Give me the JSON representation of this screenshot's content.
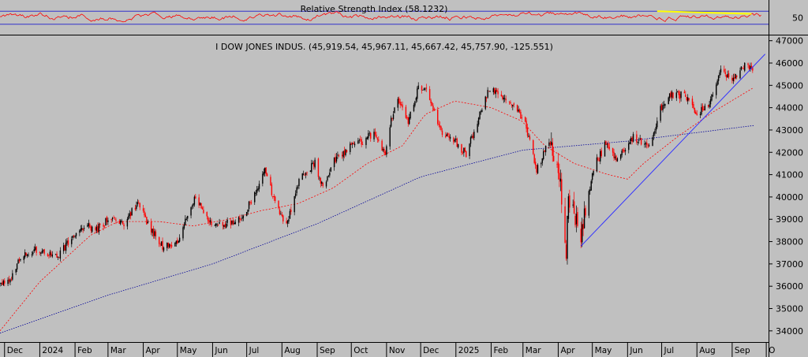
{
  "chart_data": [
    {
      "type": "line",
      "title": "Relative Strength Index (58.1232)",
      "ylim": [
        0,
        100
      ],
      "bands": [
        30,
        70
      ],
      "yticks": [
        50
      ],
      "trendline": {
        "x": [
          "2025-06-27",
          "2025-09-18"
        ],
        "y": [
          70,
          62
        ]
      },
      "colors": {
        "series": "#ff0000",
        "bands": "#3333cc",
        "trendline": "#ffff00",
        "text": "#000000"
      }
    },
    {
      "type": "candlestick",
      "title": "I DOW JONES INDUS. (45,919.54, 45,967.11, 45,667.42, 45,757.90, -125.551)",
      "ylim": [
        33500,
        47200
      ],
      "yticks": [
        34000,
        35000,
        36000,
        37000,
        38000,
        39000,
        40000,
        41000,
        42000,
        43000,
        44000,
        45000,
        46000,
        47000
      ],
      "xticks": [
        "Dec",
        "2024",
        "Feb",
        "Mar",
        "Apr",
        "May",
        "Jun",
        "Jul",
        "Aug",
        "Sep",
        "Oct",
        "Nov",
        "Dec",
        "2025",
        "Feb",
        "Mar",
        "Apr",
        "May",
        "Jun",
        "Jul",
        "Aug",
        "Sep",
        "O"
      ],
      "xtick_dates": [
        "2023-12-01",
        "2024-01-01",
        "2024-02-01",
        "2024-03-01",
        "2024-04-01",
        "2024-05-01",
        "2024-06-01",
        "2024-07-01",
        "2024-08-01",
        "2024-09-01",
        "2024-10-01",
        "2024-11-01",
        "2024-12-01",
        "2025-01-01",
        "2025-02-01",
        "2025-03-01",
        "2025-04-01",
        "2025-05-01",
        "2025-06-01",
        "2025-07-01",
        "2025-08-01",
        "2025-09-01",
        "2025-10-01"
      ],
      "x_range": [
        "2023-11-27",
        "2025-10-03"
      ],
      "close_anchors": {
        "x": [
          "2023-11-27",
          "2023-12-05",
          "2023-12-15",
          "2023-12-28",
          "2024-01-05",
          "2024-01-18",
          "2024-01-31",
          "2024-02-09",
          "2024-02-21",
          "2024-03-04",
          "2024-03-15",
          "2024-03-28",
          "2024-04-05",
          "2024-04-18",
          "2024-04-30",
          "2024-05-17",
          "2024-05-31",
          "2024-06-11",
          "2024-06-28",
          "2024-07-17",
          "2024-07-25",
          "2024-08-05",
          "2024-08-16",
          "2024-08-30",
          "2024-09-06",
          "2024-09-16",
          "2024-09-30",
          "2024-10-10",
          "2024-10-21",
          "2024-10-31",
          "2024-11-06",
          "2024-11-11",
          "2024-11-20",
          "2024-11-29",
          "2024-12-05",
          "2024-12-13",
          "2024-12-20",
          "2024-12-31",
          "2025-01-10",
          "2025-01-20",
          "2025-01-30",
          "2025-02-10",
          "2025-02-21",
          "2025-03-03",
          "2025-03-13",
          "2025-03-24",
          "2025-04-03",
          "2025-04-08",
          "2025-04-10",
          "2025-04-21",
          "2025-05-02",
          "2025-05-13",
          "2025-05-23",
          "2025-06-06",
          "2025-06-20",
          "2025-06-30",
          "2025-07-10",
          "2025-07-24",
          "2025-08-01",
          "2025-08-11",
          "2025-08-22",
          "2025-09-03",
          "2025-09-12",
          "2025-09-19"
        ],
        "y": [
          36100,
          36200,
          37300,
          37650,
          37450,
          37400,
          38300,
          38700,
          38600,
          39100,
          38800,
          39800,
          38800,
          37800,
          37900,
          40000,
          38700,
          38800,
          39100,
          41200,
          39900,
          38700,
          40700,
          41550,
          40400,
          41600,
          42300,
          42450,
          42900,
          41800,
          43700,
          44300,
          43400,
          44900,
          44800,
          43900,
          42800,
          42500,
          41900,
          43400,
          44900,
          44500,
          44100,
          43300,
          41200,
          42500,
          40600,
          37650,
          39900,
          38200,
          41300,
          42400,
          41600,
          42700,
          42200,
          44000,
          44600,
          44500,
          43700,
          44100,
          45600,
          45300,
          45900,
          45750
        ]
      },
      "ma_fast": {
        "x": [
          "2023-11-27",
          "2024-01-01",
          "2024-02-15",
          "2024-03-10",
          "2024-04-15",
          "2024-05-15",
          "2024-06-15",
          "2024-07-15",
          "2024-08-15",
          "2024-09-15",
          "2024-10-15",
          "2024-11-15",
          "2024-12-05",
          "2024-12-31",
          "2025-02-01",
          "2025-02-28",
          "2025-03-20",
          "2025-04-15",
          "2025-05-15",
          "2025-06-01",
          "2025-06-15",
          "2025-07-15",
          "2025-08-15",
          "2025-09-20"
        ],
        "y": [
          34000,
          36200,
          38300,
          38900,
          38900,
          38700,
          39000,
          39400,
          39700,
          40400,
          41500,
          42300,
          43700,
          44300,
          44000,
          43400,
          42300,
          41500,
          41000,
          40800,
          41500,
          42700,
          43800,
          44900
        ]
      },
      "ma_slow": {
        "x": [
          "2023-11-27",
          "2024-03-01",
          "2024-06-01",
          "2024-09-01",
          "2024-12-01",
          "2025-03-01",
          "2025-06-01",
          "2025-09-20"
        ],
        "y": [
          33900,
          35600,
          37000,
          38800,
          40900,
          42100,
          42500,
          43200
        ]
      },
      "trendline": {
        "x": [
          "2025-04-21",
          "2025-09-30"
        ],
        "y": [
          37800,
          46400
        ]
      },
      "colors": {
        "up": "#000000",
        "down": "#ff0000",
        "ma_fast": "#ff0000",
        "ma_slow": "#000099",
        "trendline": "#3333ff",
        "grid": "#000000"
      }
    }
  ]
}
